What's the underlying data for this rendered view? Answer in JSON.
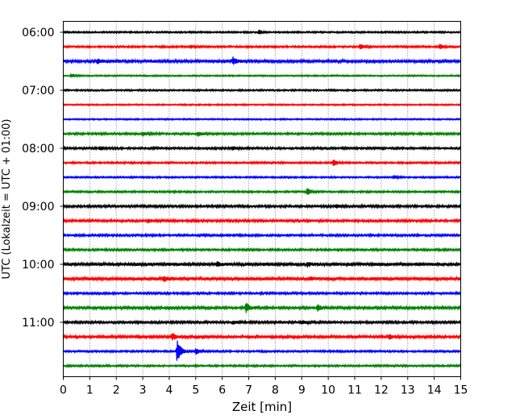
{
  "chart_data": {
    "type": "line",
    "title": "",
    "xlabel": "Zeit  [min]",
    "ylabel": "UTC (Lokalzeit = UTC + 01:00)",
    "xlim": [
      0,
      15
    ],
    "x_ticks": [
      0,
      1,
      2,
      3,
      4,
      5,
      6,
      7,
      8,
      9,
      10,
      11,
      12,
      13,
      14,
      15
    ],
    "y_tick_labels": [
      "06:00",
      "07:00",
      "08:00",
      "09:00",
      "10:00",
      "11:00"
    ],
    "grid": "vertical-dotted",
    "trace_colors": [
      "#000000",
      "#ff0000",
      "#0000ff",
      "#008000"
    ],
    "traces": [
      {
        "start": "06:00",
        "color_index": 0,
        "noise": 0.7,
        "events": [
          {
            "x": 7.4,
            "amp": 3
          }
        ]
      },
      {
        "start": "06:15",
        "color_index": 1,
        "noise": 0.8,
        "events": [
          {
            "x": 4.8,
            "amp": 2
          },
          {
            "x": 11.2,
            "amp": 3.5
          },
          {
            "x": 14.2,
            "amp": 3
          }
        ]
      },
      {
        "start": "06:30",
        "color_index": 2,
        "noise": 1.2,
        "events": [
          {
            "x": 1.3,
            "amp": 3
          },
          {
            "x": 6.4,
            "amp": 5
          }
        ]
      },
      {
        "start": "06:45",
        "color_index": 3,
        "noise": 0.6,
        "events": [
          {
            "x": 0.3,
            "amp": 2
          }
        ]
      },
      {
        "start": "07:00",
        "color_index": 0,
        "noise": 0.7,
        "events": []
      },
      {
        "start": "07:15",
        "color_index": 1,
        "noise": 0.6,
        "events": []
      },
      {
        "start": "07:30",
        "color_index": 2,
        "noise": 0.6,
        "events": []
      },
      {
        "start": "07:45",
        "color_index": 3,
        "noise": 0.9,
        "events": [
          {
            "x": 3.0,
            "amp": 2.5
          },
          {
            "x": 5.1,
            "amp": 2.5
          }
        ]
      },
      {
        "start": "08:00",
        "color_index": 0,
        "noise": 0.9,
        "events": [
          {
            "x": 1.4,
            "amp": 2
          },
          {
            "x": 6.4,
            "amp": 2
          }
        ]
      },
      {
        "start": "08:15",
        "color_index": 1,
        "noise": 0.8,
        "events": [
          {
            "x": 10.2,
            "amp": 4
          }
        ]
      },
      {
        "start": "08:30",
        "color_index": 2,
        "noise": 0.7,
        "events": [
          {
            "x": 12.5,
            "amp": 2
          }
        ]
      },
      {
        "start": "08:45",
        "color_index": 3,
        "noise": 0.8,
        "events": [
          {
            "x": 9.2,
            "amp": 5
          }
        ]
      },
      {
        "start": "09:00",
        "color_index": 0,
        "noise": 1.0,
        "events": [
          {
            "x": 10.3,
            "amp": 2
          }
        ]
      },
      {
        "start": "09:15",
        "color_index": 1,
        "noise": 1.0,
        "events": [
          {
            "x": 3.2,
            "amp": 2
          }
        ]
      },
      {
        "start": "09:30",
        "color_index": 2,
        "noise": 0.9,
        "events": []
      },
      {
        "start": "09:45",
        "color_index": 3,
        "noise": 0.9,
        "events": []
      },
      {
        "start": "10:00",
        "color_index": 0,
        "noise": 1.3,
        "events": [
          {
            "x": 5.8,
            "amp": 3
          },
          {
            "x": 9.2,
            "amp": 3
          }
        ]
      },
      {
        "start": "10:15",
        "color_index": 1,
        "noise": 1.3,
        "events": [
          {
            "x": 3.8,
            "amp": 3
          },
          {
            "x": 9.3,
            "amp": 2
          }
        ]
      },
      {
        "start": "10:30",
        "color_index": 2,
        "noise": 0.9,
        "events": []
      },
      {
        "start": "10:45",
        "color_index": 3,
        "noise": 1.1,
        "events": [
          {
            "x": 6.9,
            "amp": 6
          },
          {
            "x": 9.6,
            "amp": 5
          }
        ]
      },
      {
        "start": "11:00",
        "color_index": 0,
        "noise": 1.0,
        "events": [
          {
            "x": 6.4,
            "amp": 2
          },
          {
            "x": 9.0,
            "amp": 2
          }
        ]
      },
      {
        "start": "11:15",
        "color_index": 1,
        "noise": 1.1,
        "events": [
          {
            "x": 4.1,
            "amp": 5
          },
          {
            "x": 12.3,
            "amp": 3
          }
        ]
      },
      {
        "start": "11:30",
        "color_index": 2,
        "noise": 0.8,
        "events": [
          {
            "x": 4.3,
            "amp": 16
          },
          {
            "x": 5.0,
            "amp": 4
          }
        ]
      },
      {
        "start": "11:45",
        "color_index": 3,
        "noise": 0.8,
        "events": []
      }
    ]
  }
}
